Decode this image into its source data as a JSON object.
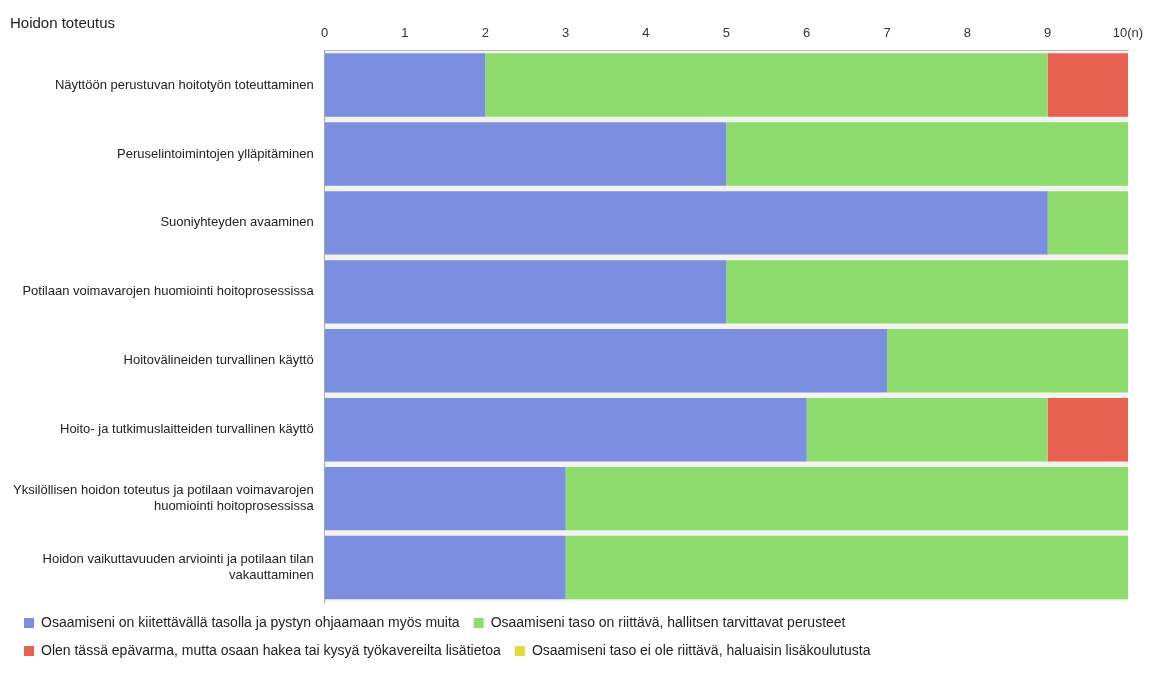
{
  "chart_data": {
    "type": "bar",
    "orientation": "horizontal",
    "stacked": true,
    "title": "Hoidon toteutus",
    "categories": [
      "Näyttöön perustuvan hoitotyön toteuttaminen",
      "Peruselintoimintojen ylläpitäminen",
      "Suoniyhteyden avaaminen",
      "Potilaan voimavarojen huomiointi hoitoprosessissa",
      "Hoitovälineiden turvallinen käyttö",
      "Hoito- ja tutkimuslaitteiden turvallinen käyttö",
      "Yksilöllisen hoidon toteutus ja potilaan voimavarojen huomiointi hoitoprosessissa",
      "Hoidon vaikuttavuuden arviointi ja potilaan tilan vakauttaminen"
    ],
    "series": [
      {
        "name": "Osaamiseni on kiitettävällä tasolla ja pystyn ohjaamaan myös muita",
        "color": "#7b8ee0",
        "values": [
          2,
          5,
          9,
          5,
          7,
          6,
          3,
          3
        ]
      },
      {
        "name": "Osaamiseni taso on riittävä, hallitsen tarvittavat perusteet",
        "color": "#8fdc6e",
        "values": [
          7,
          5,
          1,
          5,
          3,
          3,
          7,
          7
        ]
      },
      {
        "name": "Olen tässä epävarma, mutta osaan hakea tai kysyä työkavereilta lisätietoa",
        "color": "#e8604f",
        "values": [
          1,
          0,
          0,
          0,
          0,
          1,
          0,
          0
        ]
      },
      {
        "name": "Osaamiseni taso ei ole riittävä, haluaisin lisäkoulutusta",
        "color": "#e0dc3c",
        "values": [
          0,
          0,
          0,
          0,
          0,
          0,
          0,
          0
        ]
      }
    ],
    "xlim": [
      0,
      10
    ],
    "xticks": [
      0,
      1,
      2,
      3,
      4,
      5,
      6,
      7,
      8,
      9,
      {
        "value": 10,
        "label": "10(n)"
      }
    ],
    "grid": false,
    "legend": "bottom"
  }
}
